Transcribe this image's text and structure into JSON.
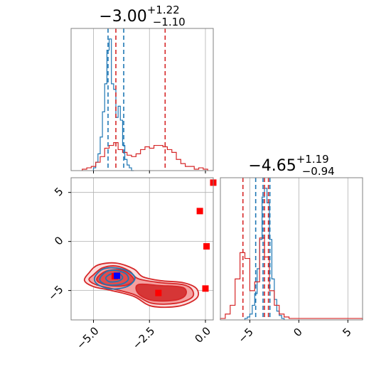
{
  "chart_data": [
    {
      "panel": "marginal-param1",
      "type": "histogram",
      "title": {
        "median": "−3.00",
        "plus": "+1.22",
        "minus": "−1.10"
      },
      "xlim": [
        -6.0,
        0.35
      ],
      "series": [
        {
          "color": "#1f77b4",
          "bin_edges": [
            -5.0,
            -4.9,
            -4.8,
            -4.7,
            -4.6,
            -4.5,
            -4.4,
            -4.3,
            -4.2,
            -4.1,
            -4.0,
            -3.9,
            -3.8,
            -3.7,
            -3.6,
            -3.5,
            -3.4,
            -3.3,
            -3.2
          ],
          "counts": [
            0.02,
            0.06,
            0.12,
            0.24,
            0.42,
            0.62,
            0.86,
            0.94,
            0.62,
            0.58,
            0.38,
            0.46,
            0.36,
            0.18,
            0.08,
            0.04,
            0.02,
            0.0
          ]
        },
        {
          "color": "#d62728",
          "bin_edges": [
            -5.5,
            -5.3,
            -5.1,
            -4.9,
            -4.7,
            -4.5,
            -4.3,
            -4.1,
            -3.9,
            -3.7,
            -3.5,
            -3.3,
            -3.1,
            -2.9,
            -2.7,
            -2.5,
            -2.3,
            -2.1,
            -1.9,
            -1.7,
            -1.5,
            -1.3,
            -1.1,
            -0.9,
            -0.7,
            -0.5,
            -0.3,
            -0.1,
            0.1
          ],
          "counts": [
            0.01,
            0.02,
            0.03,
            0.06,
            0.1,
            0.16,
            0.18,
            0.2,
            0.15,
            0.13,
            0.11,
            0.1,
            0.12,
            0.15,
            0.17,
            0.16,
            0.18,
            0.18,
            0.17,
            0.15,
            0.13,
            0.08,
            0.05,
            0.03,
            0.03,
            0.01,
            0.02,
            0.01
          ]
        }
      ],
      "quantile_lines": [
        {
          "color": "#1f77b4",
          "values": [
            -4.35,
            -3.65
          ]
        },
        {
          "color": "#d62728",
          "values": [
            -4.0,
            -1.8
          ]
        }
      ]
    },
    {
      "panel": "marginal-param2",
      "type": "histogram",
      "title": {
        "median": "−4.65",
        "plus": "+1.19",
        "minus": "−0.94"
      },
      "xlim": [
        -8.0,
        6.5
      ],
      "xticks": [
        -5,
        0,
        5
      ],
      "xtick_labels": [
        "−5",
        "0",
        "5"
      ],
      "series": [
        {
          "color": "#1f77b4",
          "bin_edges": [
            -5.5,
            -5.25,
            -5.0,
            -4.75,
            -4.5,
            -4.25,
            -4.0,
            -3.75,
            -3.5,
            -3.25,
            -3.0,
            -2.75,
            -2.5,
            -2.25,
            -2.0,
            -1.75,
            -1.5
          ],
          "counts": [
            0.01,
            0.02,
            0.04,
            0.1,
            0.18,
            0.35,
            0.55,
            0.84,
            0.9,
            0.8,
            0.55,
            0.28,
            0.14,
            0.06,
            0.03,
            0.01
          ]
        },
        {
          "color": "#d62728",
          "bin_edges": [
            -8.0,
            -7.5,
            -7.0,
            -6.5,
            -6.0,
            -5.5,
            -5.0,
            -4.5,
            -4.0,
            -3.5,
            -3.0,
            -2.5,
            -2.0,
            -1.5,
            -1.0,
            -0.5,
            0.0,
            6.5
          ],
          "counts": [
            0.01,
            0.04,
            0.1,
            0.28,
            0.46,
            0.42,
            0.2,
            0.26,
            0.56,
            0.43,
            0.2,
            0.1,
            0.04,
            0.02,
            0.01,
            0.01,
            0.01
          ]
        }
      ],
      "quantile_lines": [
        {
          "color": "#1f77b4",
          "values": [
            -4.4,
            -3.65,
            -2.95
          ]
        },
        {
          "color": "#d62728",
          "values": [
            -5.7,
            -3.5,
            -3.1
          ]
        }
      ]
    },
    {
      "panel": "joint",
      "type": "contour",
      "xlim": [
        -6.0,
        0.35
      ],
      "ylim": [
        -8.0,
        6.5
      ],
      "xticks": [
        -5.0,
        -2.5,
        0.0
      ],
      "xtick_labels": [
        "−5.0",
        "−2.5",
        "0.0"
      ],
      "yticks": [
        -5,
        0,
        5
      ],
      "ytick_labels": [
        "−5",
        "0",
        "5"
      ],
      "contour_sets": [
        {
          "color": "#d62728",
          "levels": [
            {
              "fill": "#fbdcdc",
              "points": [
                [
                  -5.2,
                  -3.2
                ],
                [
                  -4.8,
                  -2.4
                ],
                [
                  -4.0,
                  -2.2
                ],
                [
                  -3.2,
                  -2.8
                ],
                [
                  -2.8,
                  -3.6
                ],
                [
                  -2.0,
                  -4.0
                ],
                [
                  -1.0,
                  -4.2
                ],
                [
                  -0.4,
                  -4.8
                ],
                [
                  -0.4,
                  -5.8
                ],
                [
                  -1.2,
                  -6.6
                ],
                [
                  -2.4,
                  -6.6
                ],
                [
                  -3.2,
                  -5.6
                ],
                [
                  -4.2,
                  -5.0
                ],
                [
                  -5.0,
                  -4.6
                ],
                [
                  -5.4,
                  -4.0
                ]
              ]
            },
            {
              "fill": "#f39c9c",
              "points": [
                [
                  -5.0,
                  -3.4
                ],
                [
                  -4.6,
                  -2.7
                ],
                [
                  -4.0,
                  -2.5
                ],
                [
                  -3.4,
                  -3.0
                ],
                [
                  -3.0,
                  -3.8
                ],
                [
                  -2.0,
                  -4.2
                ],
                [
                  -1.0,
                  -4.4
                ],
                [
                  -0.6,
                  -4.9
                ],
                [
                  -0.6,
                  -5.7
                ],
                [
                  -1.3,
                  -6.3
                ],
                [
                  -2.4,
                  -6.3
                ],
                [
                  -3.2,
                  -5.4
                ],
                [
                  -4.2,
                  -4.8
                ],
                [
                  -4.9,
                  -4.4
                ],
                [
                  -5.2,
                  -3.9
                ]
              ]
            },
            {
              "fill": "#e04848",
              "points": [
                [
                  -4.8,
                  -3.6
                ],
                [
                  -4.4,
                  -3.0
                ],
                [
                  -3.8,
                  -2.9
                ],
                [
                  -3.4,
                  -3.3
                ],
                [
                  -3.2,
                  -4.0
                ],
                [
                  -3.6,
                  -4.5
                ],
                [
                  -4.3,
                  -4.5
                ],
                [
                  -4.8,
                  -4.1
                ]
              ]
            },
            {
              "fill": "#d43030",
              "points": [
                [
                  -3.0,
                  -4.4
                ],
                [
                  -2.0,
                  -4.5
                ],
                [
                  -1.0,
                  -4.7
                ],
                [
                  -0.9,
                  -5.5
                ],
                [
                  -1.4,
                  -6.0
                ],
                [
                  -2.4,
                  -6.0
                ],
                [
                  -3.0,
                  -5.3
                ]
              ]
            }
          ]
        },
        {
          "color": "#1f77b4",
          "levels": [
            {
              "fill": "none",
              "points": [
                [
                  -4.95,
                  -3.7
                ],
                [
                  -4.6,
                  -2.85
                ],
                [
                  -4.0,
                  -2.7
                ],
                [
                  -3.4,
                  -3.1
                ],
                [
                  -3.15,
                  -3.8
                ],
                [
                  -3.5,
                  -4.6
                ],
                [
                  -4.2,
                  -4.85
                ],
                [
                  -4.8,
                  -4.4
                ]
              ]
            },
            {
              "fill": "none",
              "points": [
                [
                  -4.7,
                  -3.7
                ],
                [
                  -4.4,
                  -3.05
                ],
                [
                  -4.0,
                  -2.95
                ],
                [
                  -3.55,
                  -3.3
                ],
                [
                  -3.45,
                  -3.9
                ],
                [
                  -3.75,
                  -4.35
                ],
                [
                  -4.3,
                  -4.45
                ],
                [
                  -4.65,
                  -4.15
                ]
              ]
            },
            {
              "fill": "none",
              "points": [
                [
                  -4.45,
                  -3.7
                ],
                [
                  -4.2,
                  -3.3
                ],
                [
                  -3.85,
                  -3.3
                ],
                [
                  -3.7,
                  -3.7
                ],
                [
                  -3.9,
                  -4.05
                ],
                [
                  -4.3,
                  -4.1
                ]
              ]
            }
          ]
        }
      ],
      "markers": [
        {
          "color": "#ff0000",
          "x": -4.05,
          "y": -3.55
        },
        {
          "color": "#0000ff",
          "x": -3.95,
          "y": -3.5
        },
        {
          "color": "#ff0000",
          "x": -2.1,
          "y": -5.25
        },
        {
          "color": "#ff0000",
          "x": 0.35,
          "y": 6.0
        },
        {
          "color": "#ff0000",
          "x": -0.25,
          "y": 3.1
        },
        {
          "color": "#ff0000",
          "x": 0.05,
          "y": -0.5
        },
        {
          "color": "#ff0000",
          "x": 0.0,
          "y": -4.8
        }
      ],
      "grid": true
    }
  ]
}
